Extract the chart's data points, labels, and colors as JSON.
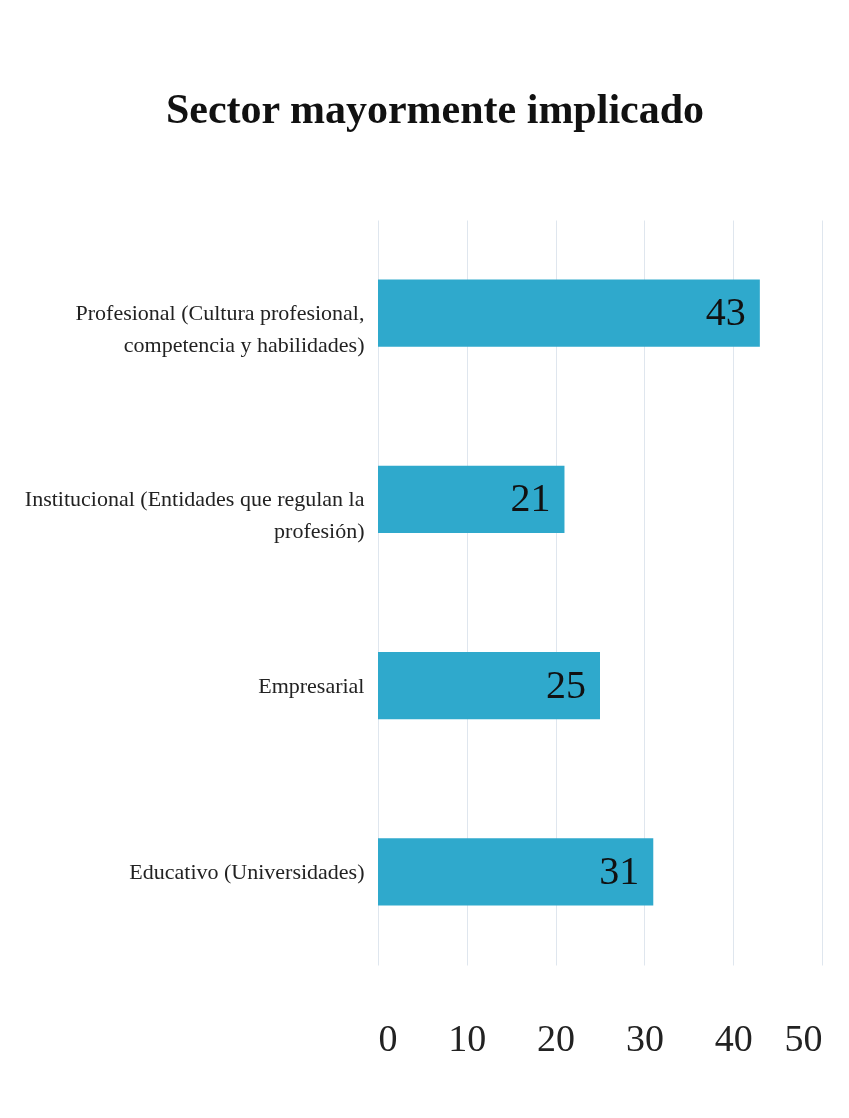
{
  "chart_data": {
    "type": "bar",
    "orientation": "horizontal",
    "title": "Sector mayormente implicado",
    "categories": [
      "Profesional (Cultura profesional, competencia y habilidades)",
      "Institucional (Entidades que regulan la profesión)",
      "Empresarial",
      "Educativo (Universidades)"
    ],
    "values": [
      43,
      21,
      25,
      31
    ],
    "color": "#2fa9cc",
    "xlim": [
      0,
      50
    ],
    "xticks": [
      0,
      10,
      20,
      30,
      40,
      50
    ],
    "grid": "x",
    "data_labels": true
  }
}
